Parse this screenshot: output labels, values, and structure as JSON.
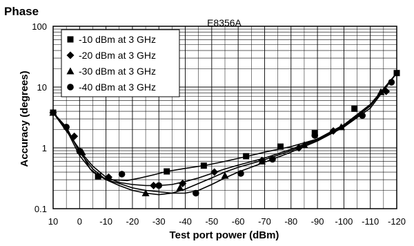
{
  "chart_data": {
    "type": "line",
    "title": "Phase",
    "subtitle": "E8356A",
    "xlabel": "Test port power (dBm)",
    "ylabel": "Accuracy (degrees)",
    "x_scale": "linear",
    "x_reversed": true,
    "xlim": [
      10,
      -120
    ],
    "y_scale": "log",
    "ylim": [
      0.1,
      100
    ],
    "grid": true,
    "legend_position": "top-left",
    "x_ticks": [
      "10",
      "0",
      "-10",
      "-20",
      "-30",
      "-40",
      "-50",
      "-60",
      "-70",
      "-80",
      "-90",
      "-100",
      "-110",
      "-120"
    ],
    "y_ticks": [
      "0.1",
      "1",
      "10",
      "100"
    ],
    "series": [
      {
        "name": "-10 dBm at 3 GHz",
        "marker": "square",
        "x": [
          10,
          0,
          -4,
          -8,
          -12,
          -18,
          -23,
          -28,
          -33,
          -40,
          -48,
          -55,
          -63,
          -70,
          -80,
          -90,
          -100,
          -110,
          -120
        ],
        "y": [
          3.8,
          0.95,
          0.45,
          0.33,
          0.3,
          0.29,
          0.32,
          0.36,
          0.41,
          0.46,
          0.52,
          0.6,
          0.72,
          0.85,
          1.05,
          1.4,
          2.2,
          4.5,
          17
        ],
        "marker_x": [
          10,
          -7,
          -33,
          -47,
          -63,
          -76,
          -89,
          -104,
          -120
        ],
        "marker_y": [
          3.8,
          0.34,
          0.41,
          0.51,
          0.73,
          1.05,
          1.75,
          4.4,
          17
        ]
      },
      {
        "name": "-20 dBm at 3 GHz",
        "marker": "diamond",
        "x": [
          10,
          5,
          0,
          -5,
          -10,
          -15,
          -20,
          -25,
          -30,
          -35,
          -40,
          -45,
          -50,
          -55,
          -60,
          -70,
          -80,
          -90,
          -100,
          -110,
          -120
        ],
        "y": [
          3.8,
          2.1,
          0.9,
          0.5,
          0.33,
          0.27,
          0.25,
          0.24,
          0.24,
          0.25,
          0.28,
          0.32,
          0.38,
          0.45,
          0.52,
          0.68,
          0.95,
          1.4,
          2.4,
          5.2,
          17
        ],
        "marker_x": [
          10,
          2,
          -11,
          -28,
          -39,
          -51,
          -69,
          -83,
          -96,
          -116
        ],
        "marker_y": [
          3.8,
          1.55,
          0.33,
          0.24,
          0.26,
          0.4,
          0.62,
          1.0,
          1.9,
          8.5
        ]
      },
      {
        "name": "-30 dBm at 3 GHz",
        "marker": "triangle",
        "x": [
          10,
          5,
          0,
          -5,
          -10,
          -15,
          -20,
          -25,
          -30,
          -35,
          -40,
          -45,
          -50,
          -55,
          -60,
          -70,
          -80,
          -90,
          -100,
          -110,
          -120
        ],
        "y": [
          3.8,
          2.0,
          0.75,
          0.4,
          0.3,
          0.24,
          0.2,
          0.18,
          0.17,
          0.18,
          0.21,
          0.26,
          0.32,
          0.4,
          0.48,
          0.64,
          0.9,
          1.35,
          2.3,
          5.0,
          17
        ],
        "marker_x": [
          10,
          -1,
          -11,
          -25,
          -38,
          -55,
          -69,
          -85,
          -99,
          -114
        ],
        "marker_y": [
          3.8,
          0.85,
          0.33,
          0.18,
          0.22,
          0.35,
          0.6,
          1.12,
          2.2,
          8.3
        ]
      },
      {
        "name": "-40 dBm at 3 GHz",
        "marker": "circle",
        "x": [
          10,
          5,
          0,
          -5,
          -10,
          -15,
          -20,
          -25,
          -30,
          -35,
          -40,
          -45,
          -50,
          -55,
          -60,
          -70,
          -80,
          -90,
          -100,
          -110,
          -120
        ],
        "y": [
          3.8,
          2.2,
          0.85,
          0.45,
          0.3,
          0.26,
          0.22,
          0.2,
          0.19,
          0.18,
          0.18,
          0.2,
          0.25,
          0.32,
          0.4,
          0.58,
          0.85,
          1.3,
          2.2,
          4.9,
          17
        ],
        "marker_x": [
          5,
          0,
          -16,
          -30,
          -44,
          -61,
          -73,
          -89,
          -107,
          -118
        ],
        "marker_y": [
          2.2,
          0.88,
          0.37,
          0.24,
          0.18,
          0.38,
          0.65,
          1.6,
          3.4,
          12
        ]
      }
    ]
  }
}
